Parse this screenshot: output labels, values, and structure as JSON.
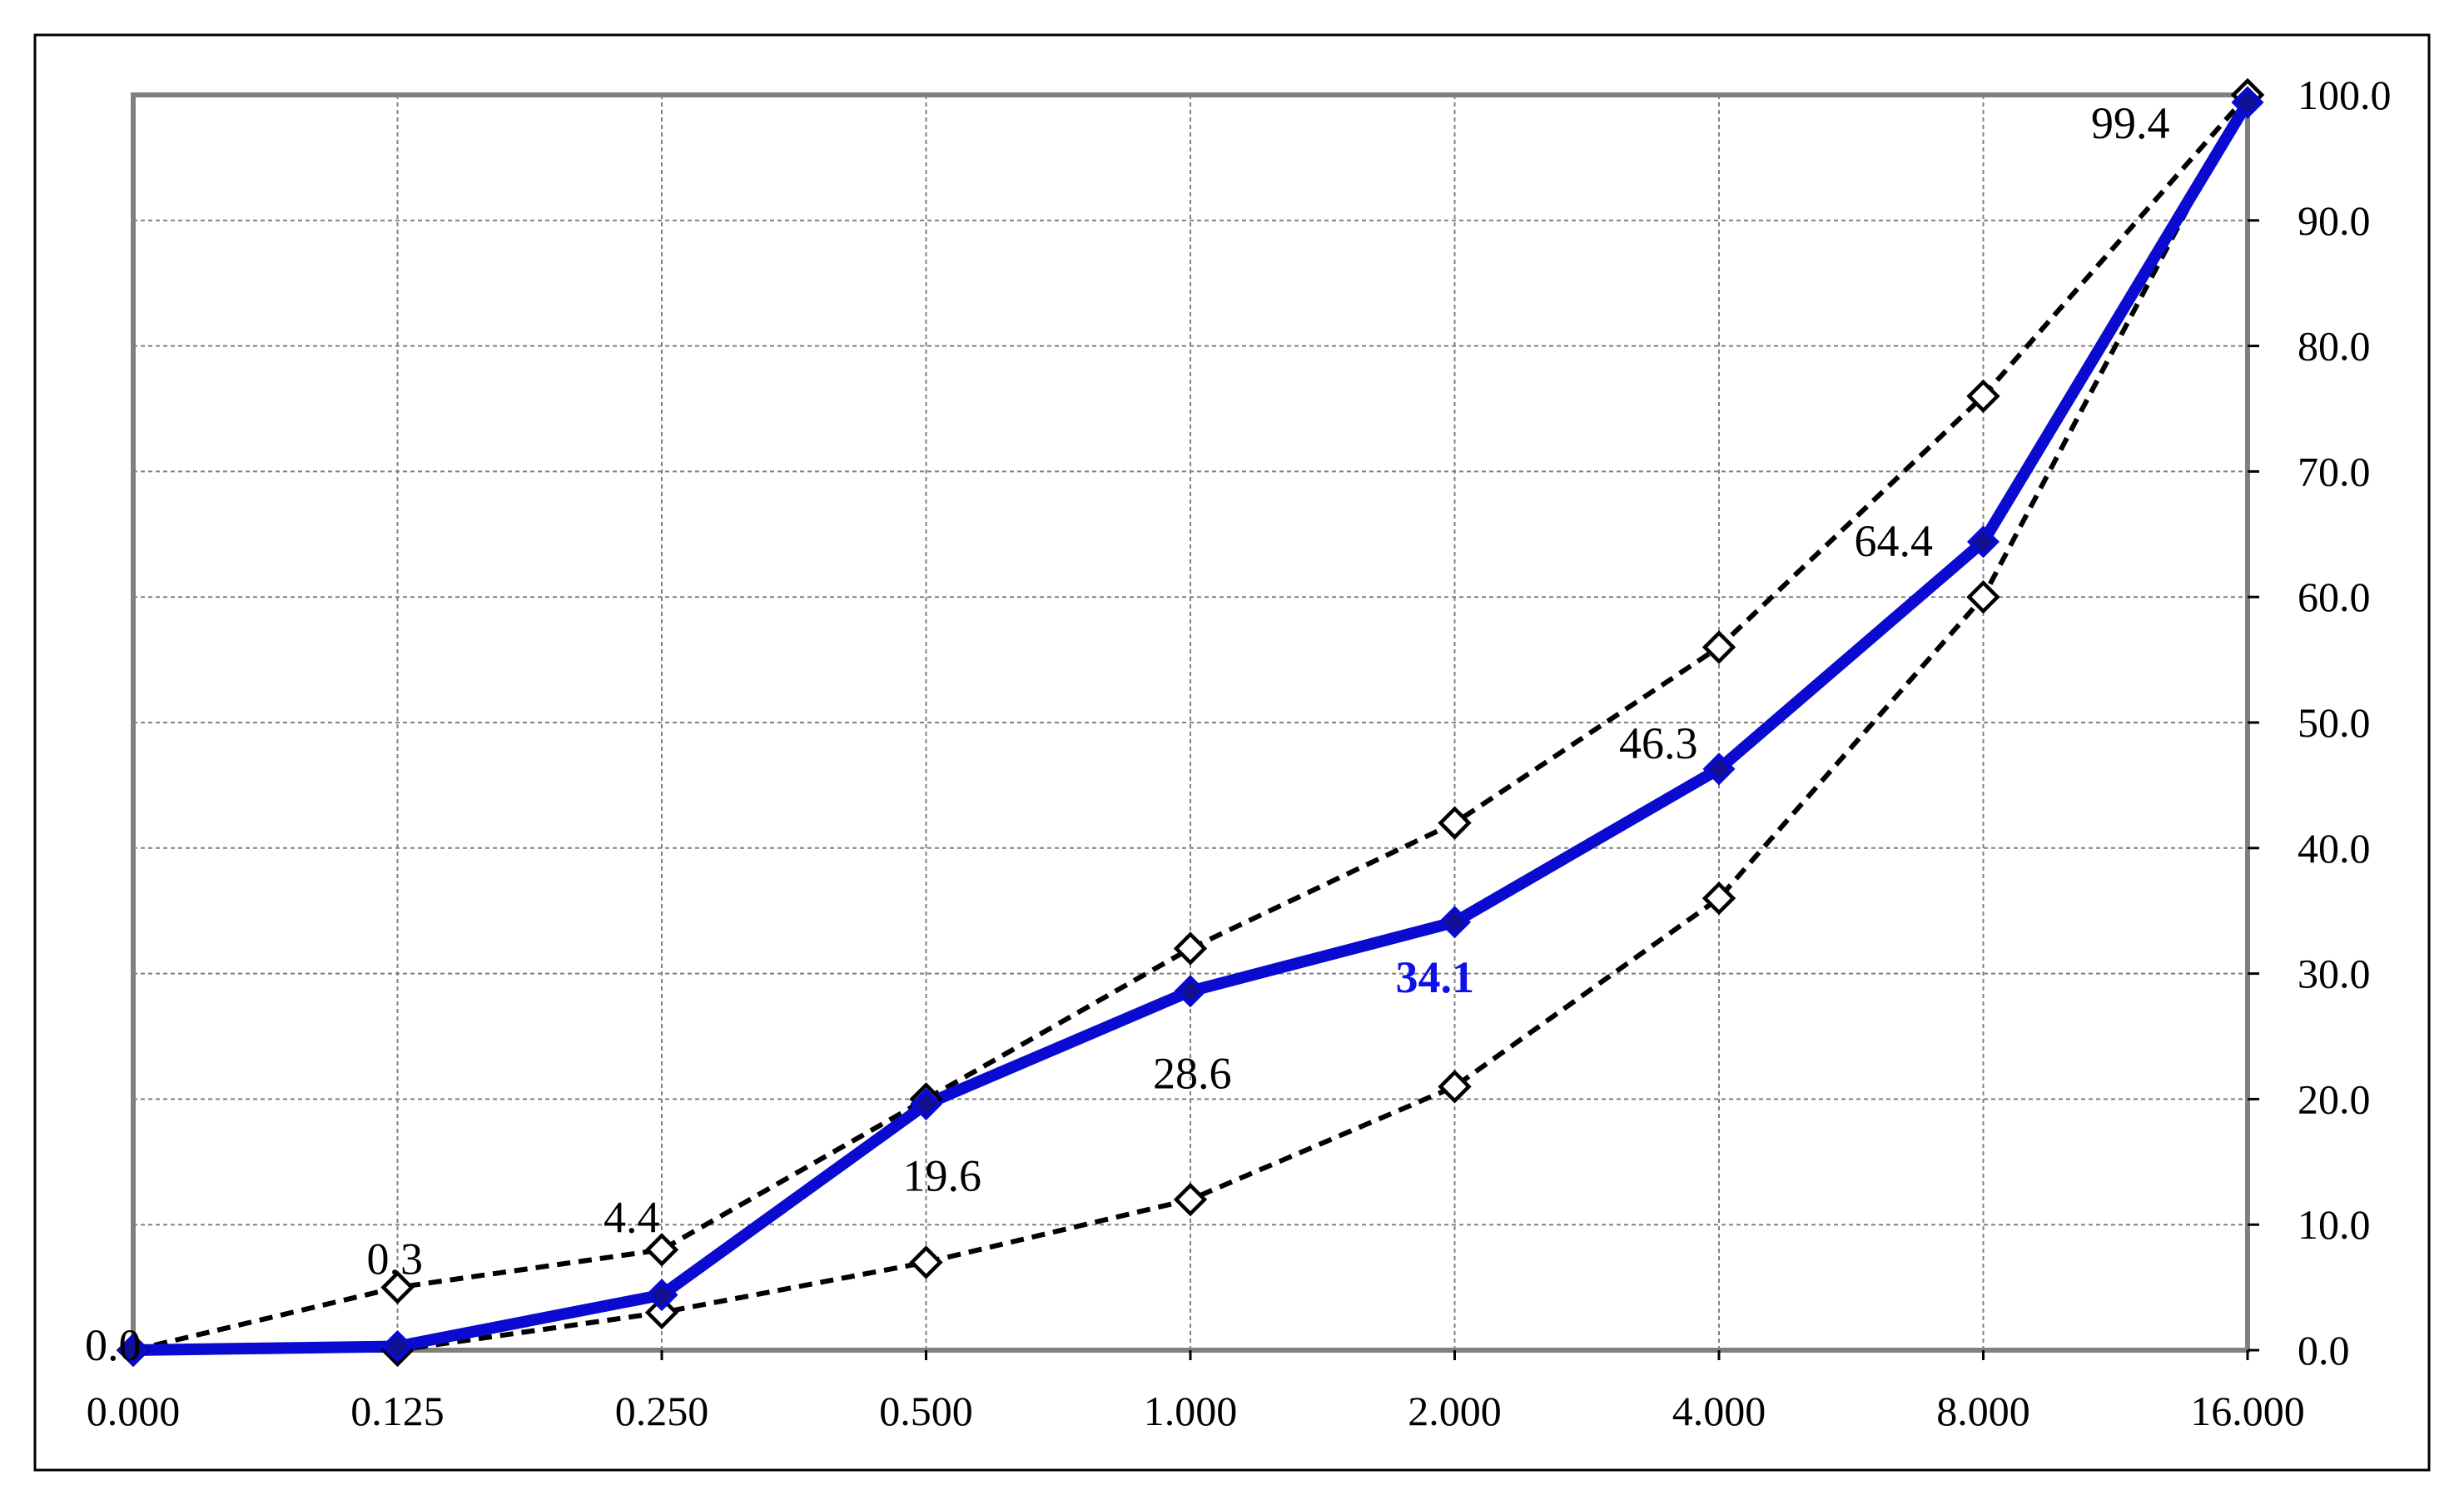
{
  "chart_data": {
    "type": "line",
    "categories": [
      "0.000",
      "0.125",
      "0.250",
      "0.500",
      "1.000",
      "2.000",
      "4.000",
      "8.000",
      "16.000"
    ],
    "series": [
      {
        "values": [
          0.0,
          0.3,
          4.4,
          19.6,
          28.6,
          34.1,
          46.3,
          64.4,
          99.4
        ],
        "data_labels": [
          "0.0",
          "0.3",
          "4.4",
          "19.6",
          "28.6",
          "34.1",
          "46.3",
          "64.4",
          "99.4"
        ],
        "style": "solid",
        "color": "#0a0ad0",
        "marker": "filled-diamond"
      },
      {
        "values": [
          0,
          5,
          8,
          20,
          32,
          42,
          56,
          76,
          100
        ],
        "style": "dashed",
        "color": "#000000",
        "marker": "open-diamond"
      },
      {
        "values": [
          0,
          0,
          3,
          7,
          12,
          21,
          36,
          60,
          100
        ],
        "style": "dashed",
        "color": "#000000",
        "marker": "open-diamond"
      }
    ],
    "y_ticks": [
      "0.0",
      "10.0",
      "20.0",
      "30.0",
      "40.0",
      "50.0",
      "60.0",
      "70.0",
      "80.0",
      "90.0",
      "100.0"
    ],
    "ylim": [
      0,
      100
    ],
    "y_axis_side": "right",
    "grid": true,
    "highlight_label_index": 5,
    "highlight_color": "#1010e8",
    "legend": "none",
    "title": "",
    "xlabel": "",
    "ylabel": ""
  }
}
